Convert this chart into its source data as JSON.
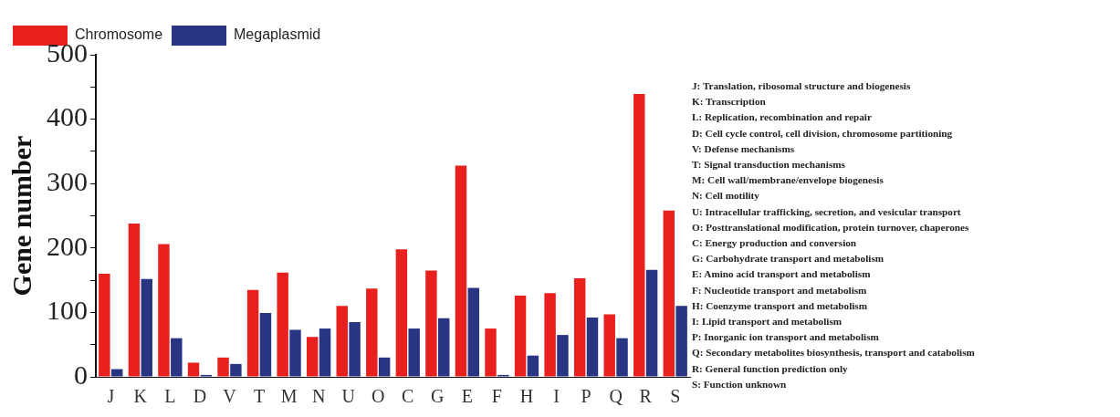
{
  "chart_data": {
    "type": "bar",
    "ylabel": "Gene number",
    "categories": [
      "J",
      "K",
      "L",
      "D",
      "V",
      "T",
      "M",
      "N",
      "U",
      "O",
      "C",
      "G",
      "E",
      "F",
      "H",
      "I",
      "P",
      "Q",
      "R",
      "S"
    ],
    "series": [
      {
        "name": "Chromosome",
        "color": "#e8201e",
        "values": [
          160,
          238,
          206,
          22,
          30,
          135,
          162,
          62,
          110,
          137,
          198,
          165,
          328,
          75,
          126,
          130,
          153,
          97,
          439,
          258
        ]
      },
      {
        "name": "Megaplasmid",
        "color": "#283583",
        "values": [
          12,
          152,
          60,
          3,
          20,
          99,
          73,
          75,
          85,
          30,
          75,
          91,
          138,
          3,
          33,
          65,
          92,
          60,
          166,
          110
        ]
      }
    ],
    "ylim": [
      0,
      500
    ],
    "yticks": [
      0,
      {
        "value": 50,
        "label": null
      },
      100,
      {
        "value": 150,
        "label": null
      },
      200,
      {
        "value": 250,
        "label": null
      },
      300,
      {
        "value": 350,
        "label": null
      },
      400,
      {
        "value": 450,
        "label": null
      },
      500
    ],
    "grid": false,
    "legend": "top left",
    "annotations": [
      "J: Translation, ribosomal structure and biogenesis",
      "K: Transcription",
      "L: Replication, recombination and repair",
      "D: Cell cycle control, cell division, chromosome partitioning",
      "V: Defense mechanisms",
      "T: Signal transduction mechanisms",
      "M: Cell wall/membrane/envelope biogenesis",
      "N: Cell motility",
      "U: Intracellular trafficking, secretion, and vesicular transport",
      "O: Posttranslational modification, protein turnover, chaperones",
      "C: Energy production and conversion",
      "G: Carbohydrate transport and metabolism",
      "E: Amino acid transport and metabolism",
      "F: Nucleotide transport and metabolism",
      "H: Coenzyme transport and metabolism",
      "I: Lipid transport and metabolism",
      "P: Inorganic ion transport and metabolism",
      "Q: Secondary metabolites biosynthesis, transport and catabolism",
      "R: General function prediction only",
      "S: Function unknown"
    ]
  }
}
